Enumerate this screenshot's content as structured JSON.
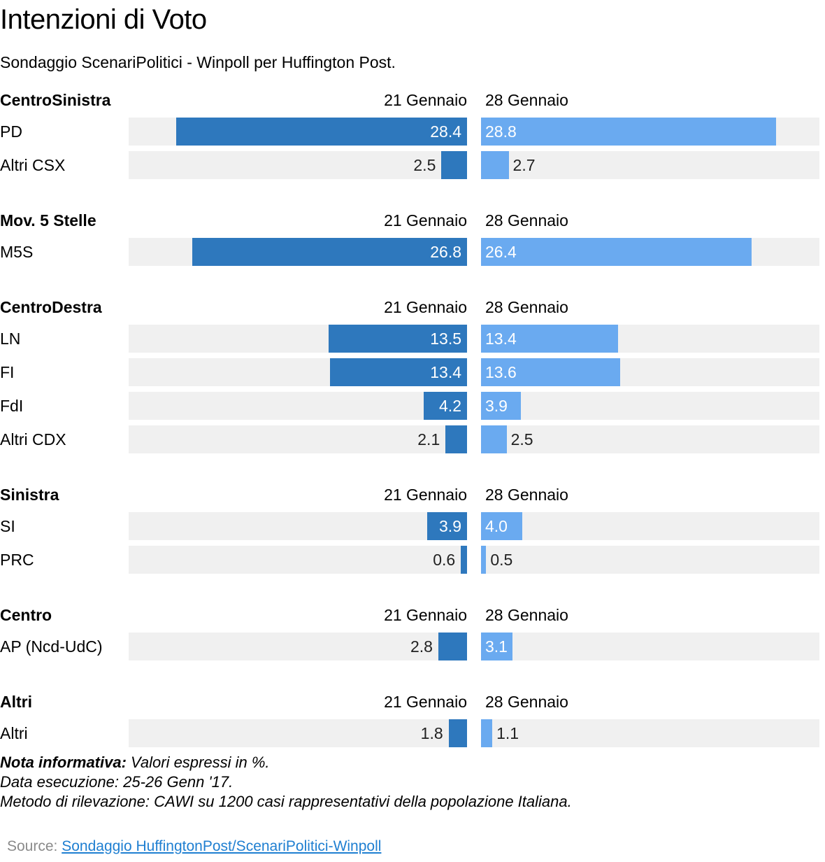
{
  "title": "Intenzioni di Voto",
  "subtitle": "Sondaggio ScenariPolitici - Winpoll per Huffington Post.",
  "notes": {
    "label": "Nota informativa:",
    "line1_rest": " Valori espressi in %.",
    "line2": "Data esecuzione: 25-26 Genn '17.",
    "line3": "Metodo di rilevazione: CAWI su 1200 casi rappresentativi della popolazione Italiana."
  },
  "source": {
    "label": "Source: ",
    "link_text": "Sondaggio HuffingtonPost/ScenariPolitici-Winpoll"
  },
  "colors": {
    "period_a": "#2e78bd",
    "period_b": "#6aaaf0",
    "track": "#f0f0f0"
  },
  "chart_data": {
    "type": "bar",
    "orientation": "horizontal-back-to-back",
    "periods": [
      "21 Gennaio",
      "28 Gennaio"
    ],
    "xlim": [
      0,
      30
    ],
    "groups": [
      {
        "name": "CentroSinistra",
        "rows": [
          {
            "label": "PD",
            "values": [
              28.4,
              28.8
            ]
          },
          {
            "label": "Altri CSX",
            "values": [
              2.5,
              2.7
            ]
          }
        ]
      },
      {
        "name": "Mov. 5 Stelle",
        "rows": [
          {
            "label": "M5S",
            "values": [
              26.8,
              26.4
            ]
          }
        ]
      },
      {
        "name": "CentroDestra",
        "rows": [
          {
            "label": "LN",
            "values": [
              13.5,
              13.4
            ]
          },
          {
            "label": "FI",
            "values": [
              13.4,
              13.6
            ]
          },
          {
            "label": "FdI",
            "values": [
              4.2,
              3.9
            ]
          },
          {
            "label": "Altri CDX",
            "values": [
              2.1,
              2.5
            ]
          }
        ]
      },
      {
        "name": "Sinistra",
        "rows": [
          {
            "label": "SI",
            "values": [
              3.9,
              4.0
            ]
          },
          {
            "label": "PRC",
            "values": [
              0.6,
              0.5
            ]
          }
        ]
      },
      {
        "name": "Centro",
        "rows": [
          {
            "label": "AP (Ncd-UdC)",
            "values": [
              2.8,
              3.1
            ]
          }
        ]
      },
      {
        "name": "Altri",
        "rows": [
          {
            "label": "Altri",
            "values": [
              1.8,
              1.1
            ]
          }
        ]
      }
    ]
  }
}
